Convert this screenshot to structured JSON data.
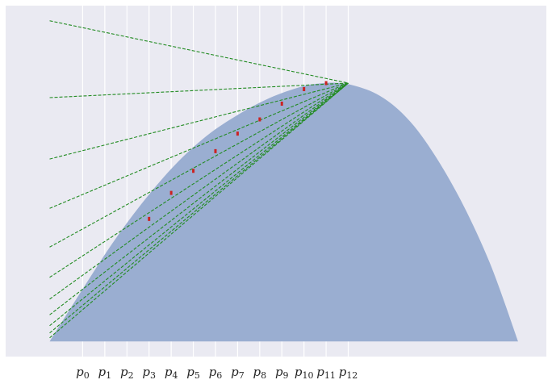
{
  "chart_data": {
    "type": "area",
    "title": "",
    "xlabel": "",
    "ylabel": "",
    "xlim": [
      -0.07,
      0.79
    ],
    "ylim": [
      -0.05,
      1.11
    ],
    "grid": "vertical lines at ticks only",
    "xticks": {
      "values": [
        0.0525,
        0.0877,
        0.1229,
        0.1581,
        0.1933,
        0.2285,
        0.2637,
        0.2989,
        0.3341,
        0.3693,
        0.4045,
        0.4397,
        0.4749
      ],
      "labels": [
        {
          "base": "p",
          "sub": "0"
        },
        {
          "base": "p",
          "sub": "1"
        },
        {
          "base": "p",
          "sub": "2"
        },
        {
          "base": "p",
          "sub": "3"
        },
        {
          "base": "p",
          "sub": "4"
        },
        {
          "base": "p",
          "sub": "5"
        },
        {
          "base": "p",
          "sub": "6"
        },
        {
          "base": "p",
          "sub": "7"
        },
        {
          "base": "p",
          "sub": "8"
        },
        {
          "base": "p",
          "sub": "9"
        },
        {
          "base": "p",
          "sub": "10"
        },
        {
          "base": "p",
          "sub": "11"
        },
        {
          "base": "p",
          "sub": "12"
        }
      ]
    },
    "curve": {
      "description": "concave function rising from origin to a maximum near x=0.455 then falling to zero at x=0.745",
      "x": [
        0.0,
        0.05,
        0.1,
        0.15,
        0.2,
        0.25,
        0.3,
        0.35,
        0.4,
        0.43,
        0.455,
        0.48,
        0.52,
        0.56,
        0.6,
        0.65,
        0.7,
        0.745
      ],
      "y": [
        0.0,
        0.165,
        0.325,
        0.465,
        0.585,
        0.68,
        0.75,
        0.805,
        0.842,
        0.853,
        0.855,
        0.848,
        0.818,
        0.756,
        0.655,
        0.482,
        0.26,
        0.0
      ],
      "fill_color": "#9aaed1"
    },
    "tangent_points": {
      "x": [
        0.1581,
        0.1933,
        0.2285,
        0.2637,
        0.2989,
        0.3341,
        0.3693,
        0.4045,
        0.4397
      ],
      "y": [
        0.405,
        0.491,
        0.564,
        0.629,
        0.687,
        0.734,
        0.786,
        0.834,
        0.854
      ],
      "color": "#cc2222"
    },
    "tangent_lines": {
      "x_start": 0.0,
      "x_end": 0.4749,
      "y_end": 0.854,
      "y_start": [
        1.06,
        0.806,
        0.603,
        0.44,
        0.312,
        0.212,
        0.14,
        0.088,
        0.052,
        0.028,
        0.012
      ],
      "color": "#228b22",
      "style": "dashed"
    },
    "colors": {
      "plot_background": "#eaeaf2",
      "grid": "#ffffff",
      "tick_text": "#262626"
    }
  }
}
